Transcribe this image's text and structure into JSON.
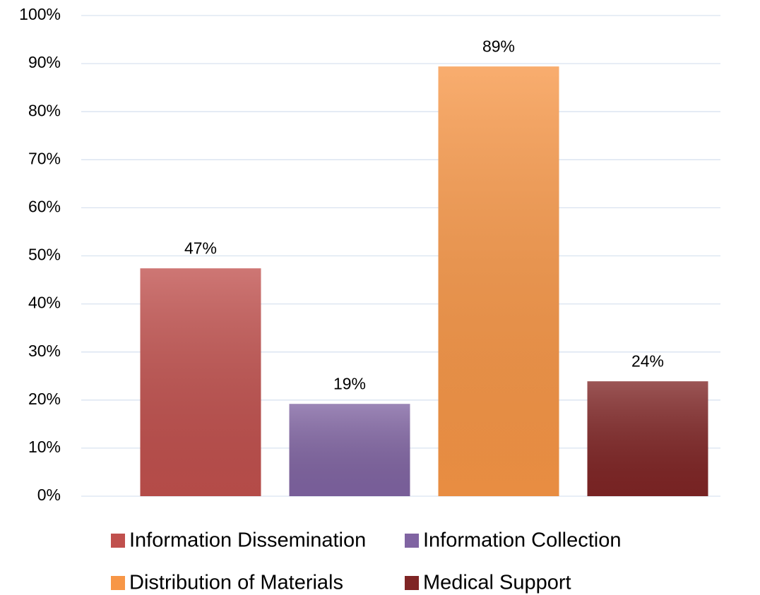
{
  "chart_data": {
    "type": "bar",
    "series": [
      {
        "name": "Information Dissemination",
        "color": "#c0504d",
        "values": [
          47.4
        ],
        "value_labels": [
          "47%"
        ]
      },
      {
        "name": "Information Collection",
        "color": "#8064a2",
        "values": [
          19.2
        ],
        "value_labels": [
          "19%"
        ]
      },
      {
        "name": "Distribution of Materials",
        "color": "#f79646",
        "values": [
          89.4
        ],
        "value_labels": [
          "89%"
        ]
      },
      {
        "name": "Medical Support",
        "color": "#7f2525",
        "values": [
          23.9
        ],
        "value_labels": [
          "24%"
        ]
      }
    ],
    "ylim": [
      0,
      100
    ],
    "yticks": [
      {
        "value": 0,
        "label": "0%"
      },
      {
        "value": 10,
        "label": "10%"
      },
      {
        "value": 20,
        "label": "20%"
      },
      {
        "value": 30,
        "label": "30%"
      },
      {
        "value": 40,
        "label": "40%"
      },
      {
        "value": 50,
        "label": "50%"
      },
      {
        "value": 60,
        "label": "60%"
      },
      {
        "value": 70,
        "label": "70%"
      },
      {
        "value": 80,
        "label": "80%"
      },
      {
        "value": 90,
        "label": "90%"
      },
      {
        "value": 100,
        "label": "100%"
      }
    ],
    "grid": true,
    "legend": "bottom"
  }
}
